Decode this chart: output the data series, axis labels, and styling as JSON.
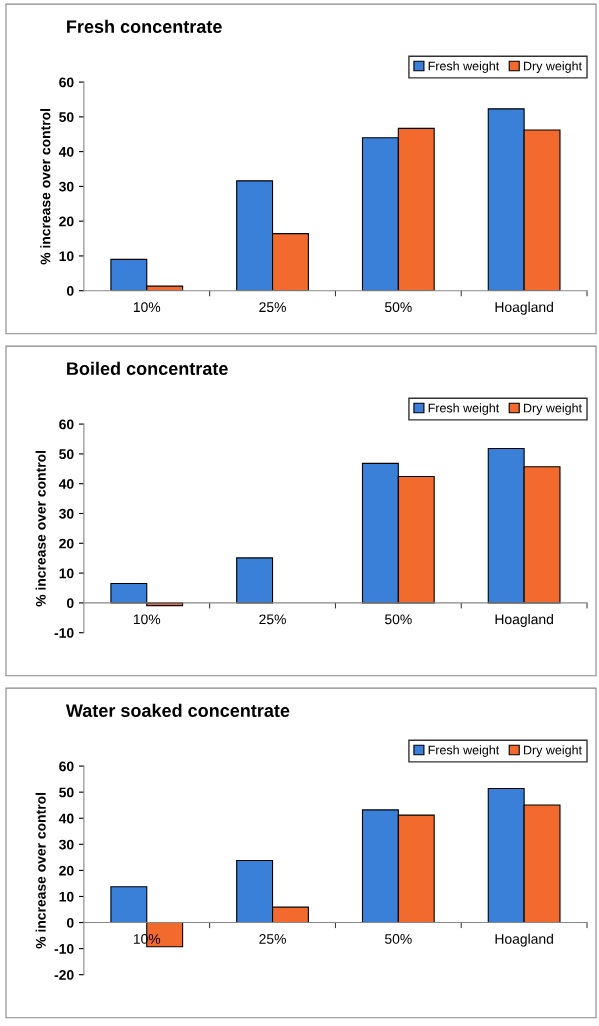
{
  "chart_data": [
    {
      "type": "bar",
      "title": "Fresh concentrate",
      "ylabel": "% increase over control",
      "categories": [
        "10%",
        "25%",
        "50%",
        "Hoagland"
      ],
      "series": [
        {
          "name": "Fresh weight",
          "color": "#3a7fd8",
          "values": [
            9.0,
            31.6,
            44.0,
            52.3
          ]
        },
        {
          "name": "Dry weight",
          "color": "#f26a2e",
          "values": [
            1.3,
            16.4,
            46.7,
            46.2
          ]
        }
      ],
      "ylim": [
        0,
        60
      ],
      "yticks": [
        0,
        10,
        20,
        30,
        40,
        50,
        60
      ],
      "legend": "top right",
      "grid": false
    },
    {
      "type": "bar",
      "title": "Boiled concentrate",
      "ylabel": "% increase over control",
      "categories": [
        "10%",
        "25%",
        "50%",
        "Hoagland"
      ],
      "series": [
        {
          "name": "Fresh weight",
          "color": "#3a7fd8",
          "values": [
            6.5,
            15.1,
            46.8,
            51.8
          ]
        },
        {
          "name": "Dry weight",
          "color": "#f26a2e",
          "values": [
            -0.9,
            null,
            42.4,
            45.7
          ]
        }
      ],
      "ylim": [
        -10,
        60
      ],
      "yticks": [
        -10,
        0,
        10,
        20,
        30,
        40,
        50,
        60
      ],
      "legend": "top right",
      "grid": false
    },
    {
      "type": "bar",
      "title": "Water soaked concentrate",
      "ylabel": "% increase over control",
      "categories": [
        "10%",
        "25%",
        "50%",
        "Hoagland"
      ],
      "series": [
        {
          "name": "Fresh weight",
          "color": "#3a7fd8",
          "values": [
            13.7,
            23.8,
            43.2,
            51.4
          ]
        },
        {
          "name": "Dry weight",
          "color": "#f26a2e",
          "values": [
            -9.3,
            5.9,
            41.2,
            45.1
          ]
        }
      ],
      "ylim": [
        -20,
        60
      ],
      "yticks": [
        -20,
        -10,
        0,
        10,
        20,
        30,
        40,
        50,
        60
      ],
      "legend": "top right",
      "grid": false
    }
  ]
}
